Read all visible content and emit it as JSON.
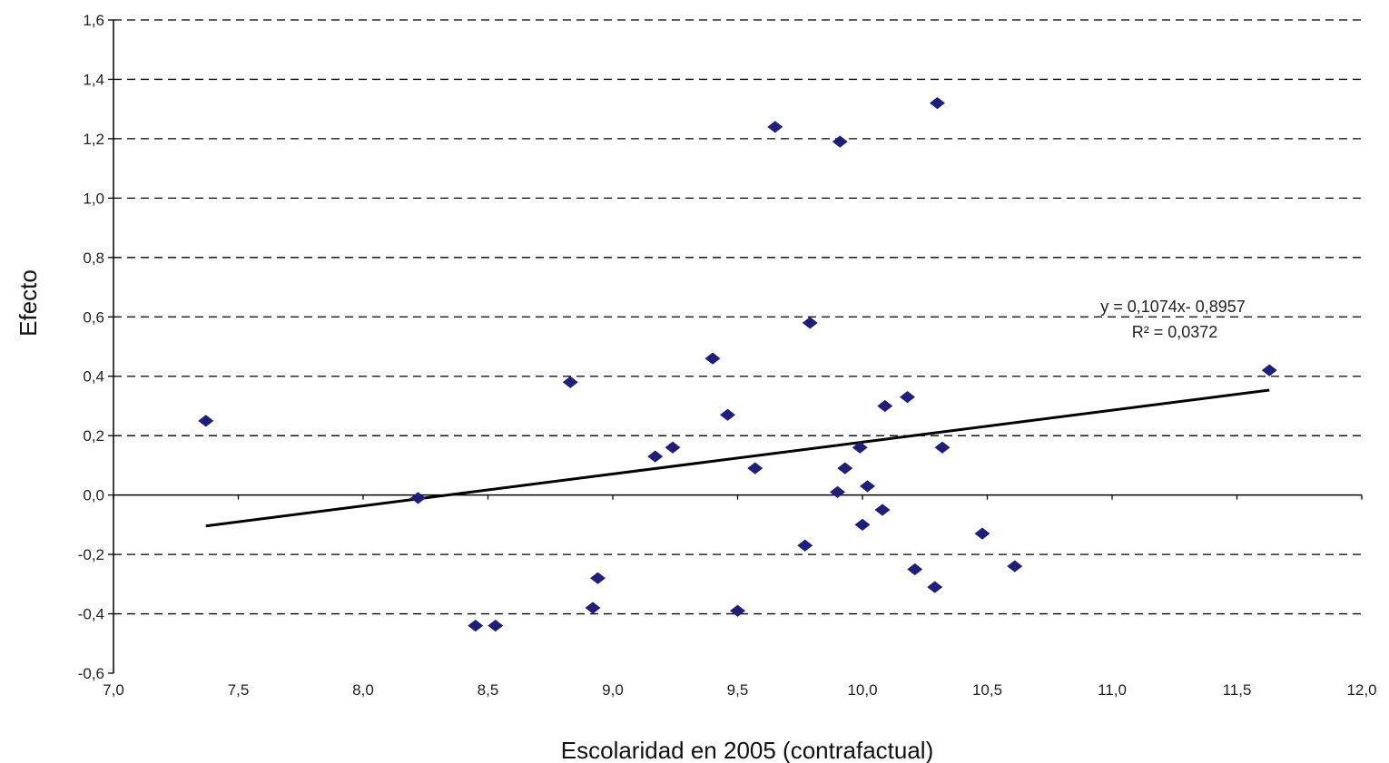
{
  "chart_data": {
    "type": "scatter",
    "xlabel": "Escolaridad en 2005 (contrafactual)",
    "ylabel": "Efecto",
    "xlim": [
      7.0,
      12.0
    ],
    "ylim": [
      -0.6,
      1.6
    ],
    "x_ticks": [
      "7,0",
      "7,5",
      "8,0",
      "8,5",
      "9,0",
      "9,5",
      "10,0",
      "10,5",
      "11,0",
      "11,5",
      "12,0"
    ],
    "y_ticks": [
      "1,6",
      "1,4",
      "1,2",
      "1,0",
      "0,8",
      "0,6",
      "0,4",
      "0,2",
      "0,0",
      "-0,2",
      "-0,4",
      "-0,6"
    ],
    "grid": "horizontal-dashed",
    "marker_color": "#1f1f7a",
    "points": [
      {
        "x": 7.37,
        "y": 0.25
      },
      {
        "x": 8.22,
        "y": -0.01
      },
      {
        "x": 8.45,
        "y": -0.44
      },
      {
        "x": 8.53,
        "y": -0.44
      },
      {
        "x": 8.83,
        "y": 0.38
      },
      {
        "x": 8.92,
        "y": -0.38
      },
      {
        "x": 8.94,
        "y": -0.28
      },
      {
        "x": 9.17,
        "y": 0.13
      },
      {
        "x": 9.24,
        "y": 0.16
      },
      {
        "x": 9.4,
        "y": 0.46
      },
      {
        "x": 9.46,
        "y": 0.27
      },
      {
        "x": 9.5,
        "y": -0.39
      },
      {
        "x": 9.57,
        "y": 0.09
      },
      {
        "x": 9.65,
        "y": 1.24
      },
      {
        "x": 9.77,
        "y": -0.17
      },
      {
        "x": 9.79,
        "y": 0.58
      },
      {
        "x": 9.9,
        "y": 0.01
      },
      {
        "x": 9.91,
        "y": 1.19
      },
      {
        "x": 9.93,
        "y": 0.09
      },
      {
        "x": 9.99,
        "y": 0.16
      },
      {
        "x": 10.0,
        "y": -0.1
      },
      {
        "x": 10.02,
        "y": 0.03
      },
      {
        "x": 10.08,
        "y": -0.05
      },
      {
        "x": 10.09,
        "y": 0.3
      },
      {
        "x": 10.18,
        "y": 0.33
      },
      {
        "x": 10.21,
        "y": -0.25
      },
      {
        "x": 10.29,
        "y": -0.31
      },
      {
        "x": 10.3,
        "y": 1.32
      },
      {
        "x": 10.32,
        "y": 0.16
      },
      {
        "x": 10.48,
        "y": -0.13
      },
      {
        "x": 10.61,
        "y": -0.24
      },
      {
        "x": 11.63,
        "y": 0.42
      }
    ],
    "trendline": {
      "slope": 0.1074,
      "intercept": -0.8957,
      "x_range": [
        7.37,
        11.63
      ],
      "equation_label": "y = 0,1074x- 0,8957",
      "r2_label": "R² = 0,0372"
    }
  }
}
